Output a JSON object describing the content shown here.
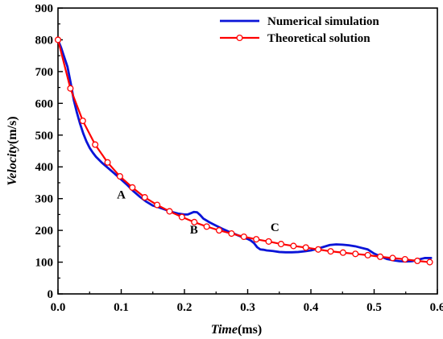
{
  "chart_data": {
    "type": "line",
    "xlabel_italic": "Time",
    "xlabel_unit": "(ms)",
    "ylabel_italic": "Velocity",
    "ylabel_unit": "(m/s)",
    "xlim": [
      0,
      0.6
    ],
    "ylim": [
      0,
      900
    ],
    "xticks": [
      "0.0",
      "0.1",
      "0.2",
      "0.3",
      "0.4",
      "0.5",
      "0.6"
    ],
    "yticks": [
      "0",
      "100",
      "200",
      "300",
      "400",
      "500",
      "600",
      "700",
      "800",
      "900"
    ],
    "grid": false,
    "legend_position": "top-right",
    "series": [
      {
        "name": "Numerical simulation",
        "color": "#0a14d8",
        "marker": "none",
        "x": [
          0.0,
          0.005,
          0.01,
          0.015,
          0.02,
          0.025,
          0.03,
          0.035,
          0.04,
          0.045,
          0.05,
          0.055,
          0.06,
          0.07,
          0.08,
          0.09,
          0.1,
          0.11,
          0.12,
          0.13,
          0.14,
          0.15,
          0.16,
          0.17,
          0.18,
          0.19,
          0.2,
          0.205,
          0.21,
          0.215,
          0.22,
          0.225,
          0.23,
          0.24,
          0.25,
          0.26,
          0.27,
          0.28,
          0.29,
          0.3,
          0.305,
          0.31,
          0.315,
          0.32,
          0.325,
          0.33,
          0.34,
          0.35,
          0.36,
          0.37,
          0.38,
          0.39,
          0.4,
          0.41,
          0.42,
          0.43,
          0.44,
          0.45,
          0.46,
          0.47,
          0.48,
          0.49,
          0.5,
          0.51,
          0.52,
          0.53,
          0.54,
          0.55,
          0.56,
          0.57,
          0.58,
          0.59
        ],
        "y": [
          800,
          775,
          745,
          715,
          665,
          610,
          570,
          535,
          505,
          480,
          460,
          445,
          432,
          412,
          395,
          378,
          360,
          342,
          322,
          305,
          290,
          278,
          272,
          265,
          258,
          253,
          250,
          250,
          254,
          258,
          257,
          248,
          237,
          225,
          215,
          205,
          196,
          188,
          180,
          173,
          168,
          160,
          147,
          140,
          139,
          137,
          135,
          132,
          131,
          131,
          132,
          134,
          137,
          142,
          148,
          154,
          156,
          155,
          153,
          150,
          145,
          140,
          127,
          118,
          110,
          106,
          103,
          102,
          103,
          108,
          113,
          113
        ]
      },
      {
        "name": "Theoretical solution",
        "color": "#ff0000",
        "marker": "circle",
        "x": [
          0.0,
          0.0196,
          0.0392,
          0.0588,
          0.0784,
          0.098,
          0.1176,
          0.1372,
          0.1568,
          0.1764,
          0.196,
          0.2156,
          0.2352,
          0.2548,
          0.2744,
          0.294,
          0.3136,
          0.3332,
          0.3528,
          0.3724,
          0.392,
          0.4116,
          0.4312,
          0.4508,
          0.4704,
          0.49,
          0.5096,
          0.5292,
          0.5488,
          0.5684,
          0.588
        ],
        "y": [
          800,
          647,
          545,
          470,
          414,
          370,
          335,
          304,
          280,
          260,
          242,
          226,
          212,
          200,
          190,
          180,
          172,
          165,
          157,
          151,
          146,
          140,
          134,
          130,
          126,
          122,
          117,
          113,
          109,
          104,
          100
        ]
      }
    ],
    "annotations": [
      {
        "text": "A",
        "x": 0.1,
        "y": 300
      },
      {
        "text": "B",
        "x": 0.215,
        "y": 190
      },
      {
        "text": "C",
        "x": 0.343,
        "y": 198
      }
    ]
  }
}
